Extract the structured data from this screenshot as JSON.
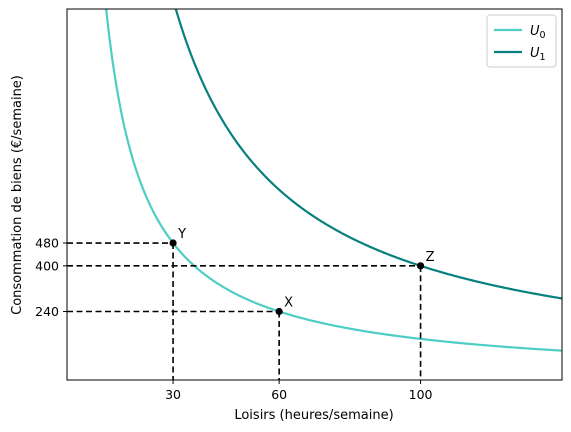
{
  "chart_data": {
    "type": "line",
    "xlabel": "Loisirs (heures/semaine)",
    "ylabel": "Consommation de biens (€/semaine)",
    "xlim": [
      0,
      140
    ],
    "ylim": [
      0,
      1300
    ],
    "x_ticks": [
      30,
      60,
      100
    ],
    "y_ticks": [
      240,
      400,
      480
    ],
    "legend_position": "top-right",
    "series": [
      {
        "name": "U",
        "subscript": "0",
        "formula": "y = 14400 / x",
        "color": "#4ecdc4"
      },
      {
        "name": "U",
        "subscript": "1",
        "formula": "y = 40000 / x",
        "color": "#08807e"
      }
    ],
    "points": [
      {
        "label": "Y",
        "x": 30,
        "y": 480
      },
      {
        "label": "X",
        "x": 60,
        "y": 240
      },
      {
        "label": "Z",
        "x": 100,
        "y": 400
      }
    ]
  }
}
